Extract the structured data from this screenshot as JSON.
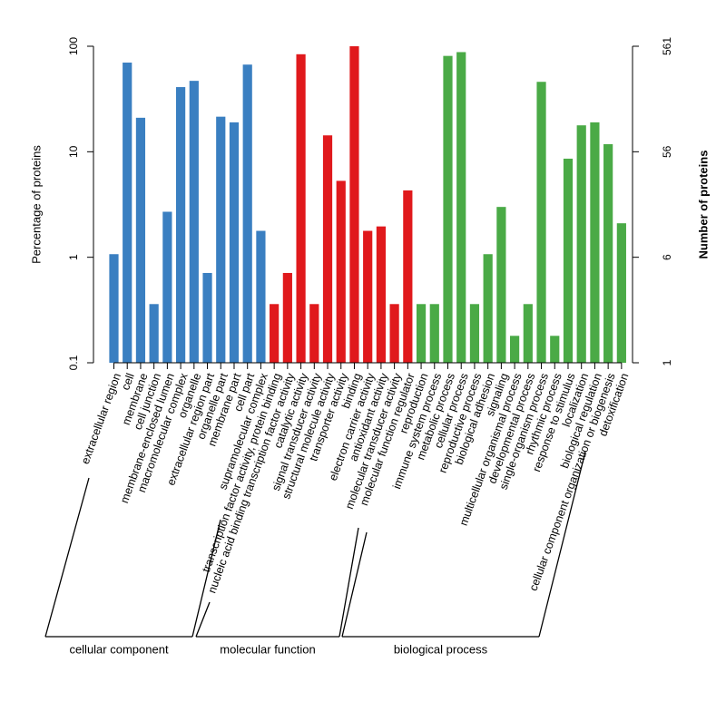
{
  "chart_data": {
    "type": "bar",
    "ylabel_left": "Percentage of proteins",
    "ylabel_right": "Number of proteins",
    "y_scale": "log",
    "ylim": [
      0.1,
      100
    ],
    "left_ticks": [
      {
        "value": 0.1,
        "label": "0.1"
      },
      {
        "value": 1,
        "label": "1"
      },
      {
        "value": 10,
        "label": "10"
      },
      {
        "value": 100,
        "label": "100"
      }
    ],
    "right_ticks": [
      {
        "value": 0.1,
        "label": "1"
      },
      {
        "value": 1,
        "label": "6"
      },
      {
        "value": 10,
        "label": "56"
      },
      {
        "value": 100,
        "label": "561"
      }
    ],
    "groups": [
      {
        "name": "cellular component",
        "color": "#3a7fc1",
        "categories": [
          "extracellular region",
          "cell",
          "membrane",
          "cell junction",
          "membrane-enclosed lumen",
          "macromolecular complex",
          "organelle",
          "extracellular region part",
          "organelle part",
          "membrane part",
          "cell part",
          "supramolecular complex"
        ],
        "values": [
          1.07,
          70,
          21,
          0.36,
          2.7,
          41,
          47,
          0.71,
          21.5,
          19,
          67,
          1.78
        ]
      },
      {
        "name": "molecular function",
        "color": "#e0191c",
        "categories": [
          "transcription factor activity, protein binding",
          "nucleic acid binding transcription factor activity",
          "catalytic activity",
          "signal transducer activity",
          "structural molecule activity",
          "transporter activity",
          "binding",
          "electron carrier activity",
          "antioxidant activity",
          "molecular transducer activity",
          "molecular function regulator"
        ],
        "values": [
          0.36,
          0.71,
          84,
          0.36,
          14.3,
          5.3,
          100,
          1.78,
          1.96,
          0.36,
          4.3
        ]
      },
      {
        "name": "biological process",
        "color": "#4aaa46",
        "categories": [
          "reproduction",
          "immune system process",
          "metabolic process",
          "cellular process",
          "reproductive process",
          "biological adhesion",
          "signaling",
          "multicellular organismal process",
          "developmental process",
          "single-organism process",
          "rhythmic process",
          "response to stimulus",
          "localization",
          "biological regulation",
          "cellular component organization or biogenesis",
          "detoxification"
        ],
        "values": [
          0.36,
          0.36,
          81,
          88,
          0.36,
          1.07,
          3.0,
          0.18,
          0.36,
          46,
          0.18,
          8.6,
          17.8,
          19,
          11.8,
          2.1
        ]
      }
    ]
  }
}
